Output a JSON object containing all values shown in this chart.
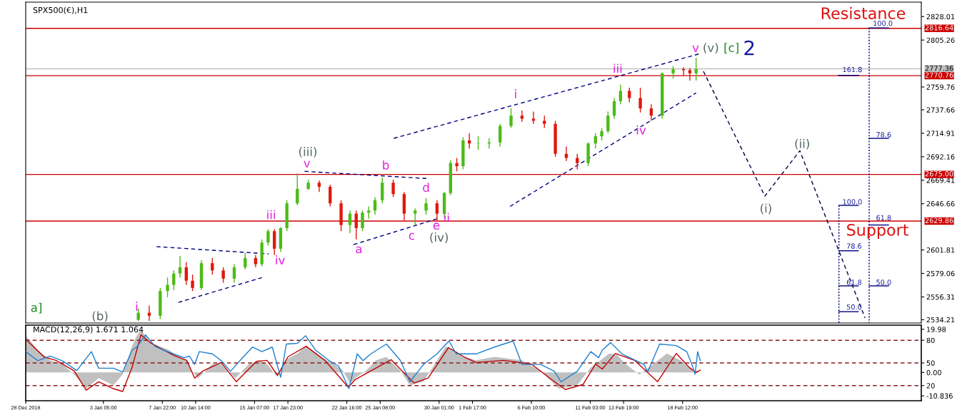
{
  "chart_data": [
    {
      "type": "candlestick",
      "title": "SPX500(€),H1",
      "tick_labels": "y",
      "xlim": [
        "2018-12-28T00:00",
        "2019-03-09T14:00"
      ],
      "ylim": [
        2531,
        2842
      ],
      "yticks": [
        2828.01,
        2805.26,
        2759.76,
        2737.66,
        2714.91,
        2692.16,
        2669.41,
        2646.66,
        2601.81,
        2579.06,
        2556.31,
        2534.21
      ],
      "x": [
        "2019-01-06T00:00",
        "2019-01-06T21:00",
        "2019-01-07T18:00",
        "2019-01-08T08:00",
        "2019-01-08T20:00",
        "2019-01-09T08:00",
        "2019-01-09T20:00",
        "2019-01-10T08:00",
        "2019-01-11T01:00",
        "2019-01-11T22:00",
        "2019-01-12T19:00",
        "2019-01-13T16:00",
        "2019-01-14T13:00",
        "2019-01-15T09:00",
        "2019-01-15T21:00",
        "2019-01-16T09:00",
        "2019-01-16T21:00",
        "2019-01-17T09:00",
        "2019-01-17T21:00",
        "2019-01-18T17:00",
        "2019-01-19T14:00",
        "2019-01-20T11:00",
        "2019-01-21T08:00",
        "2019-01-22T05:00",
        "2019-01-22T22:00",
        "2019-01-23T10:00",
        "2019-01-23T22:00",
        "2019-01-24T10:00",
        "2019-01-24T22:00",
        "2019-01-25T12:00",
        "2019-01-26T09:00",
        "2019-01-27T06:00",
        "2019-01-28T03:00",
        "2019-01-29T00:00",
        "2019-01-29T21:00",
        "2019-01-30T11:00",
        "2019-01-30T23:00",
        "2019-01-31T11:00",
        "2019-01-31T23:00",
        "2019-02-01T11:00",
        "2019-02-02T04:00",
        "2019-02-03T01:00",
        "2019-02-03T22:00",
        "2019-02-04T19:00",
        "2019-02-05T16:00",
        "2019-02-06T14:00",
        "2019-02-07T11:00",
        "2019-02-08T08:00",
        "2019-02-09T05:00",
        "2019-02-10T02:00",
        "2019-02-10T23:00",
        "2019-02-11T13:00",
        "2019-02-12T01:00",
        "2019-02-12T13:00",
        "2019-02-13T01:00",
        "2019-02-13T13:00",
        "2019-02-14T06:00",
        "2019-02-15T03:00",
        "2019-02-16T00:00",
        "2019-02-16T21:00",
        "2019-02-17T18:00",
        "2019-02-18T14:00",
        "2019-02-19T02:00",
        "2019-02-19T14:00"
      ],
      "ohlc": [
        [
          2534,
          2545,
          2533,
          2541
        ],
        [
          2541,
          2548,
          2533,
          2538
        ],
        [
          2538,
          2565,
          2535,
          2562
        ],
        [
          2562,
          2575,
          2556,
          2568
        ],
        [
          2568,
          2582,
          2563,
          2579
        ],
        [
          2579,
          2596,
          2575,
          2585
        ],
        [
          2585,
          2590,
          2568,
          2572
        ],
        [
          2572,
          2578,
          2562,
          2565
        ],
        [
          2565,
          2592,
          2563,
          2589
        ],
        [
          2589,
          2594,
          2578,
          2582
        ],
        [
          2582,
          2585,
          2570,
          2574
        ],
        [
          2574,
          2588,
          2570,
          2585
        ],
        [
          2585,
          2599,
          2583,
          2594
        ],
        [
          2594,
          2597,
          2585,
          2588
        ],
        [
          2588,
          2612,
          2586,
          2609
        ],
        [
          2609,
          2622,
          2606,
          2620
        ],
        [
          2620,
          2622,
          2597,
          2603
        ],
        [
          2603,
          2624,
          2600,
          2623
        ],
        [
          2623,
          2650,
          2620,
          2647
        ],
        [
          2647,
          2676,
          2645,
          2661
        ],
        [
          2661,
          2670,
          2660,
          2667
        ],
        [
          2667,
          2669,
          2658,
          2663
        ],
        [
          2663,
          2665,
          2644,
          2647
        ],
        [
          2647,
          2650,
          2620,
          2626
        ],
        [
          2626,
          2640,
          2618,
          2637
        ],
        [
          2637,
          2640,
          2612,
          2623
        ],
        [
          2623,
          2640,
          2620,
          2638
        ],
        [
          2638,
          2644,
          2632,
          2640
        ],
        [
          2640,
          2653,
          2636,
          2650
        ],
        [
          2650,
          2672,
          2647,
          2667
        ],
        [
          2667,
          2670,
          2653,
          2656
        ],
        [
          2656,
          2658,
          2630,
          2637
        ],
        [
          2637,
          2642,
          2626,
          2640
        ],
        [
          2640,
          2652,
          2636,
          2647
        ],
        [
          2647,
          2650,
          2630,
          2637
        ],
        [
          2637,
          2658,
          2633,
          2657
        ],
        [
          2657,
          2689,
          2655,
          2686
        ],
        [
          2686,
          2691,
          2678,
          2683
        ],
        [
          2683,
          2711,
          2680,
          2708
        ],
        [
          2708,
          2715,
          2700,
          2705
        ],
        [
          2705,
          2712,
          2699,
          2705
        ],
        [
          2705,
          2710,
          2700,
          2706
        ],
        [
          2706,
          2724,
          2702,
          2722
        ],
        [
          2722,
          2739,
          2720,
          2732
        ],
        [
          2732,
          2737,
          2726,
          2729
        ],
        [
          2729,
          2736,
          2724,
          2727
        ],
        [
          2727,
          2732,
          2720,
          2724
        ],
        [
          2724,
          2727,
          2692,
          2695
        ],
        [
          2695,
          2702,
          2688,
          2691
        ],
        [
          2691,
          2695,
          2680,
          2686
        ],
        [
          2686,
          2706,
          2683,
          2705
        ],
        [
          2705,
          2715,
          2700,
          2712
        ],
        [
          2712,
          2720,
          2708,
          2717
        ],
        [
          2717,
          2736,
          2715,
          2732
        ],
        [
          2732,
          2749,
          2729,
          2746
        ],
        [
          2746,
          2762,
          2743,
          2756
        ],
        [
          2756,
          2759,
          2745,
          2749
        ],
        [
          2749,
          2759,
          2735,
          2739
        ],
        [
          2739,
          2743,
          2727,
          2732
        ],
        [
          2732,
          2774,
          2729,
          2773
        ],
        [
          2773,
          2780,
          2768,
          2777
        ],
        [
          2777,
          2779,
          2771,
          2776
        ],
        [
          2776,
          2778,
          2766,
          2773
        ],
        [
          2773,
          2788,
          2766,
          2777
        ]
      ],
      "colors": [
        "#4cbb17",
        "#e0180c",
        "#4cbb17",
        "#4cbb17",
        "#4cbb17",
        "#4cbb17",
        "#e0180c",
        "#e0180c",
        "#4cbb17",
        "#e0180c",
        "#e0180c",
        "#4cbb17",
        "#4cbb17",
        "#e0180c",
        "#4cbb17",
        "#4cbb17",
        "#e0180c",
        "#4cbb17",
        "#4cbb17",
        "#4cbb17",
        "#4cbb17",
        "#e0180c",
        "#e0180c",
        "#e0180c",
        "#4cbb17",
        "#e0180c",
        "#4cbb17",
        "#4cbb17",
        "#4cbb17",
        "#4cbb17",
        "#e0180c",
        "#e0180c",
        "#4cbb17",
        "#4cbb17",
        "#e0180c",
        "#4cbb17",
        "#4cbb17",
        "#e0180c",
        "#4cbb17",
        "#e0180c",
        "#4cbb17",
        "#4cbb17",
        "#4cbb17",
        "#4cbb17",
        "#e0180c",
        "#e0180c",
        "#e0180c",
        "#e0180c",
        "#e0180c",
        "#e0180c",
        "#4cbb17",
        "#4cbb17",
        "#4cbb17",
        "#4cbb17",
        "#4cbb17",
        "#4cbb17",
        "#e0180c",
        "#e0180c",
        "#e0180c",
        "#4cbb17",
        "#4cbb17",
        "#e0180c",
        "#e0180c",
        "#4cbb17"
      ],
      "series": [
        {
          "type": "line",
          "color": "#000080",
          "line_style": "dashed",
          "x": [
            "2019-01-07T11:00",
            "2019-01-16T10:00"
          ],
          "values": [
            2605,
            2598
          ]
        },
        {
          "type": "line",
          "color": "#000080",
          "line_style": "dashed",
          "x": [
            "2019-01-09T05:00",
            "2019-01-15T21:00"
          ],
          "values": [
            2551,
            2575
          ]
        },
        {
          "type": "line",
          "color": "#000080",
          "line_style": "dashed",
          "x": [
            "2019-01-19T07:00",
            "2019-01-29T04:00"
          ],
          "values": [
            2678,
            2671
          ]
        },
        {
          "type": "line",
          "color": "#000080",
          "line_style": "dashed",
          "x": [
            "2019-01-23T05:00",
            "2019-01-29T21:00"
          ],
          "values": [
            2607,
            2632
          ]
        },
        {
          "type": "line",
          "color": "#000080",
          "line_style": "dashed",
          "x": [
            "2019-01-26T10:00",
            "2019-02-19T21:00"
          ],
          "values": [
            2710,
            2792
          ]
        },
        {
          "type": "line",
          "color": "#000080",
          "line_style": "dashed",
          "x": [
            "2019-02-04T17:00",
            "2019-02-19T14:00"
          ],
          "values": [
            2644,
            2754
          ]
        },
        {
          "type": "line",
          "color": "#000040",
          "line_style": "dashed",
          "x": [
            "2019-02-20T04:00",
            "2019-02-25T02:00",
            "2019-02-27T21:00",
            "2019-03-05T02:00"
          ],
          "values": [
            2775,
            2654,
            2698,
            2536
          ]
        },
        {
          "type": "line",
          "color": "#000080",
          "line_style": "dotted",
          "x": [
            "2019-03-03T00:00",
            "2019-03-03T00:00"
          ],
          "values": [
            2645,
            2531
          ]
        },
        {
          "type": "line",
          "color": "#000080",
          "line_style": "dotted",
          "x": [
            "2019-03-05T10:00",
            "2019-03-05T10:00"
          ],
          "values": [
            2817,
            2531
          ]
        },
        {
          "type": "line",
          "color": "#000080",
          "line_style": "solid",
          "x": [
            "2019-03-02T23:00",
            "2019-03-04T14:00"
          ],
          "values": [
            2771,
            2771
          ]
        },
        {
          "type": "line",
          "color": "#000080",
          "line_style": "solid",
          "x": [
            "2019-03-03T00:00",
            "2019-03-04T13:00"
          ],
          "values": [
            2645,
            2645
          ]
        },
        {
          "type": "line",
          "color": "#000080",
          "line_style": "solid",
          "x": [
            "2019-03-03T00:00",
            "2019-03-04T13:00"
          ],
          "values": [
            2601,
            2601
          ]
        },
        {
          "type": "line",
          "color": "#000080",
          "line_style": "solid",
          "x": [
            "2019-03-03T00:00",
            "2019-03-04T13:00"
          ],
          "values": [
            2567,
            2567
          ]
        },
        {
          "type": "line",
          "color": "#000080",
          "line_style": "solid",
          "x": [
            "2019-03-03T00:00",
            "2019-03-04T13:00"
          ],
          "values": [
            2542,
            2542
          ]
        },
        {
          "type": "line",
          "color": "#000080",
          "line_style": "solid",
          "x": [
            "2019-03-05T10:00",
            "2019-03-06T23:00"
          ],
          "values": [
            2817,
            2817
          ]
        },
        {
          "type": "line",
          "color": "#000080",
          "line_style": "solid",
          "x": [
            "2019-03-05T10:00",
            "2019-03-06T23:00"
          ],
          "values": [
            2710,
            2710
          ]
        },
        {
          "type": "line",
          "color": "#000080",
          "line_style": "solid",
          "x": [
            "2019-03-05T10:00",
            "2019-03-06T23:00"
          ],
          "values": [
            2626,
            2626
          ]
        },
        {
          "type": "line",
          "color": "#000080",
          "line_style": "solid",
          "x": [
            "2019-03-05T10:00",
            "2019-03-06T23:00"
          ],
          "values": [
            2567,
            2567
          ]
        }
      ],
      "ref_lines": [
        {
          "axis": "y",
          "value": 2816.64,
          "label": "2816.64",
          "color": "#cc0000"
        },
        {
          "axis": "y",
          "value": 2777.36,
          "label": "2777.36",
          "color": "#c0c0c0"
        },
        {
          "axis": "y",
          "value": 2770.76,
          "label": "2770.76",
          "color": "#cc0000"
        },
        {
          "axis": "y",
          "value": 2675.0,
          "label": "2675.00",
          "color": "#cc0000"
        },
        {
          "axis": "y",
          "value": 2629.86,
          "label": "2629.86",
          "color": "#cc0000"
        }
      ],
      "annotations": [
        "a]",
        "(b)",
        "i",
        "iii",
        "iv",
        "(iii)",
        "v",
        "a",
        "b",
        "c",
        {
          "text": "d",
          "x": "2019-01-29T00:00",
          "y": 2652
        },
        "e",
        "ii",
        "(iv)",
        "i",
        "iii",
        "iv",
        "v",
        "(v)",
        "[c]",
        "2",
        "(i)",
        "(ii)",
        "Resistance",
        "Support",
        "100.0",
        "161.8",
        "78.6",
        "61.8",
        "50.0",
        "100.0",
        "78.6",
        "61.8",
        "50.0"
      ]
    },
    {
      "type": "line",
      "title": "MACD(12,26,9) 1.671 1.064",
      "xlim": [
        "2018-12-28T00:00",
        "2019-03-09T14:00"
      ],
      "ylim": [
        -13.1,
        21.9
      ],
      "yticks": [
        19.98,
        {
          "value": 0,
          "label": "0.00"
        },
        -10.836
      ],
      "y2lim": [
        0,
        100
      ],
      "y2ticks": [
        80,
        50,
        20
      ],
      "xticks": [
        {
          "value": "2018-12-28T00:00",
          "label": "28 Dec 2018"
        },
        {
          "value": "2019-01-03T05:00",
          "label": "3 Jan 05:00"
        },
        {
          "value": "2019-01-07T22:00",
          "label": "7 Jan 22:00"
        },
        {
          "value": "2019-01-10T14:00",
          "label": "10 Jan 14:00"
        },
        {
          "value": "2019-01-15T07:00",
          "label": "15 Jan 07:00"
        },
        {
          "value": "2019-01-17T23:00",
          "label": "17 Jan 23:00"
        },
        {
          "value": "2019-01-22T16:00",
          "label": "22 Jan 16:00"
        },
        {
          "value": "2019-01-25T08:00",
          "label": "25 Jan 08:00"
        },
        {
          "value": "2019-01-30T01:00",
          "label": "30 Jan 01:00"
        },
        {
          "value": "2019-02-01T17:00",
          "label": "1 Feb 17:00"
        },
        {
          "value": "2019-02-06T10:00",
          "label": "6 Feb 10:00"
        },
        {
          "value": "2019-02-11T03:00",
          "label": "11 Feb 03:00"
        },
        {
          "value": "2019-02-13T19:00",
          "label": "13 Feb 19:00"
        },
        {
          "value": "2019-02-18T12:00",
          "label": "18 Feb 12:00"
        }
      ],
      "series": [
        {
          "type": "area",
          "color": "#c0c0c0",
          "x": [
            "2018-12-28T00:00",
            "2018-12-28T23:00",
            "2018-12-29T23:00",
            "2018-12-30T22:00",
            "2018-12-31T21:00",
            "2019-01-01T09:00",
            "2019-01-01T20:00",
            "2019-01-02T20:00",
            "2019-01-04T00:00",
            "2019-01-04T18:00",
            "2019-01-05T12:00",
            "2019-01-05T21:00",
            "2019-01-06T05:00",
            "2019-01-06T23:00",
            "2019-01-07T17:00",
            "2019-01-08T10:00",
            "2019-01-09T06:00",
            "2019-01-09T21:00",
            "2019-01-10T07:00",
            "2019-01-10T19:00",
            "2019-01-11T22:00",
            "2019-01-12T15:00",
            "2019-01-13T18:00",
            "2019-01-14T20:00",
            "2019-01-15T16:00",
            "2019-01-16T07:00",
            "2019-01-17T03:00",
            "2019-01-17T18:00",
            "2019-01-18T17:00",
            "2019-01-19T10:00",
            "2019-01-20T13:00",
            "2019-01-21T15:00",
            "2019-01-22T09:00",
            "2019-01-22T22:00",
            "2019-01-23T08:00",
            "2019-01-24T04:00",
            "2019-01-25T00:00",
            "2019-01-25T20:00",
            "2019-01-26T23:00",
            "2019-01-27T17:00",
            "2019-01-28T19:00",
            "2019-01-29T21:00",
            "2019-01-30T14:00",
            "2019-01-31T05:00",
            "2019-02-01T01:00",
            "2019-02-02T00:00",
            "2019-02-03T11:00",
            "2019-02-05T16:00",
            "2019-02-07T04:00",
            "2019-02-08T15:00",
            "2019-02-10T02:00",
            "2019-02-11T04:00",
            "2019-02-11T19:00",
            "2019-02-12T15:00",
            "2019-02-13T06:00",
            "2019-02-13T23:00",
            "2019-02-15T01:00",
            "2019-02-16T04:00",
            "2019-02-17T06:00",
            "2019-02-18T08:00",
            "2019-02-19T01:00",
            "2019-02-19T11:00",
            "2019-02-19T18:00"
          ],
          "values": [
            17.0,
            10.5,
            5.6,
            3.9,
            -1.0,
            -4.3,
            -7.5,
            -2.6,
            -5.9,
            -1.0,
            12.1,
            17.0,
            20.0,
            13.8,
            12.1,
            10.5,
            7.2,
            5.6,
            0.7,
            -2.6,
            3.9,
            3.9,
            -2.6,
            3.9,
            5.6,
            3.9,
            -2.0,
            5.6,
            8.8,
            12.1,
            7.2,
            3.9,
            0.7,
            -5.2,
            -2.6,
            0.7,
            5.6,
            7.2,
            0.7,
            -5.9,
            -4.3,
            5.6,
            12.1,
            10.5,
            7.2,
            5.6,
            7.2,
            5.6,
            0.7,
            -7.5,
            -5.9,
            2.3,
            4.9,
            8.8,
            8.2,
            3.9,
            -1.0,
            3.9,
            8.8,
            5.6,
            2.3,
            0.0,
            1.3
          ]
        },
        {
          "type": "line",
          "color": "#c00000",
          "x": [
            "2018-12-28T00:00",
            "2018-12-29T11:00",
            "2018-12-30T10:00",
            "2018-12-31T21:00",
            "2019-01-01T20:00",
            "2019-01-02T20:00",
            "2019-01-04T00:00",
            "2019-01-04T18:00",
            "2019-01-05T12:00",
            "2019-01-06T05:00",
            "2019-01-06T23:00",
            "2019-01-08T00:00",
            "2019-01-08T20:00",
            "2019-01-09T21:00",
            "2019-01-10T12:00",
            "2019-01-11T04:00",
            "2019-01-12T15:00",
            "2019-01-13T20:00",
            "2019-01-15T11:00",
            "2019-01-16T07:00",
            "2019-01-17T03:00",
            "2019-01-17T23:00",
            "2019-01-19T10:00",
            "2019-01-20T22:00",
            "2019-01-22T19:00",
            "2019-01-23T08:00",
            "2019-01-24T14:00",
            "2019-01-26T05:00",
            "2019-01-28T01:00",
            "2019-01-29T04:00",
            "2019-01-30T19:00",
            "2019-02-01T01:00",
            "2019-02-02T00:00",
            "2019-02-04T05:00",
            "2019-02-06T10:00",
            "2019-02-07T21:00",
            "2019-02-09T03:00",
            "2019-02-10T13:00",
            "2019-02-11T13:00",
            "2019-02-12T02:00",
            "2019-02-13T03:00",
            "2019-02-14T16:00",
            "2019-02-16T12:00",
            "2019-02-18T00:00",
            "2019-02-19T01:00",
            "2019-02-19T14:00",
            "2019-02-19T22:00"
          ],
          "values": [
            15.4,
            7.2,
            5.6,
            0.7,
            -8.2,
            -4.3,
            -7.5,
            -8.8,
            2.3,
            17.4,
            13.8,
            10.5,
            7.9,
            5.6,
            -2.6,
            0.7,
            4.6,
            -4.3,
            5.2,
            5.6,
            -1.3,
            7.2,
            12.1,
            5.6,
            -6.9,
            -3.3,
            0.7,
            5.9,
            -4.9,
            -2.6,
            11.5,
            7.2,
            4.6,
            5.6,
            3.9,
            -2.6,
            -7.9,
            -5.6,
            3.9,
            1.6,
            8.8,
            5.6,
            -4.3,
            8.8,
            2.3,
            0.0,
            1.0
          ]
        },
        {
          "type": "line",
          "color": "#1e7fd0",
          "axis": "y2",
          "x": [
            "2018-12-28T00:00",
            "2018-12-28T23:00",
            "2018-12-29T23:00",
            "2018-12-30T22:00",
            "2019-01-01T02:00",
            "2019-01-02T06:00",
            "2019-01-02T20:00",
            "2019-01-04T00:00",
            "2019-01-04T18:00",
            "2019-01-05T12:00",
            "2019-01-05T21:00",
            "2019-01-06T14:00",
            "2019-01-07T08:00",
            "2019-01-08T00:00",
            "2019-01-08T20:00",
            "2019-01-09T16:00",
            "2019-01-10T02:00",
            "2019-01-10T12:00",
            "2019-01-10T21:00",
            "2019-01-11T22:00",
            "2019-01-12T15:00",
            "2019-01-13T09:00",
            "2019-01-14T03:00",
            "2019-01-15T03:00",
            "2019-01-15T21:00",
            "2019-01-16T17:00",
            "2019-01-17T09:00",
            "2019-01-17T20:00",
            "2019-01-18T17:00",
            "2019-01-19T09:00",
            "2019-01-20T04:00",
            "2019-01-21T06:00",
            "2019-01-22T00:00",
            "2019-01-22T20:00",
            "2019-01-23T12:00",
            "2019-01-23T23:00",
            "2019-01-24T14:00",
            "2019-01-25T20:00",
            "2019-01-26T23:00",
            "2019-01-27T17:00",
            "2019-01-28T19:00",
            "2019-01-29T21:00",
            "2019-01-30T20:00",
            "2019-01-31T10:00",
            "2019-02-01T01:00",
            "2019-02-02T00:00",
            "2019-02-03T11:00",
            "2019-02-04T23:00",
            "2019-02-05T16:00",
            "2019-02-07T04:00",
            "2019-02-08T06:00",
            "2019-02-08T19:00",
            "2019-02-10T02:00",
            "2019-02-11T04:00",
            "2019-02-11T19:00",
            "2019-02-12T02:00",
            "2019-02-12T18:00",
            "2019-02-13T16:00",
            "2019-02-14T07:00",
            "2019-02-15T10:00",
            "2019-02-15T17:00",
            "2019-02-16T16:00",
            "2019-02-18T00:00",
            "2019-02-18T20:00",
            "2019-02-19T06:00",
            "2019-02-19T12:00",
            "2019-02-19T17:00",
            "2019-02-19T22:00"
          ],
          "values": [
            65,
            53,
            59,
            53,
            40,
            65,
            43,
            43,
            38,
            67,
            71,
            87,
            72,
            67,
            62,
            57,
            59,
            48,
            65,
            62,
            53,
            39,
            53,
            71,
            65,
            71,
            31,
            75,
            76,
            86,
            67,
            53,
            46,
            16,
            62,
            53,
            62,
            75,
            53,
            25,
            48,
            62,
            79,
            62,
            62,
            62,
            71,
            79,
            48,
            48,
            39,
            25,
            39,
            65,
            57,
            67,
            77,
            62,
            57,
            48,
            38,
            75,
            73,
            65,
            48,
            35,
            65,
            53
          ]
        }
      ],
      "ref_lines": [
        {
          "axis": "y2",
          "value": 80,
          "label": null,
          "color": "#8b1a1a",
          "line_style": "dashed"
        },
        {
          "axis": "y2",
          "value": 50,
          "label": null,
          "color": "#8b1a1a",
          "line_style": "dashed"
        },
        {
          "axis": "y2",
          "value": 20,
          "label": null,
          "color": "#8b1a1a",
          "line_style": "dashed"
        }
      ]
    }
  ]
}
